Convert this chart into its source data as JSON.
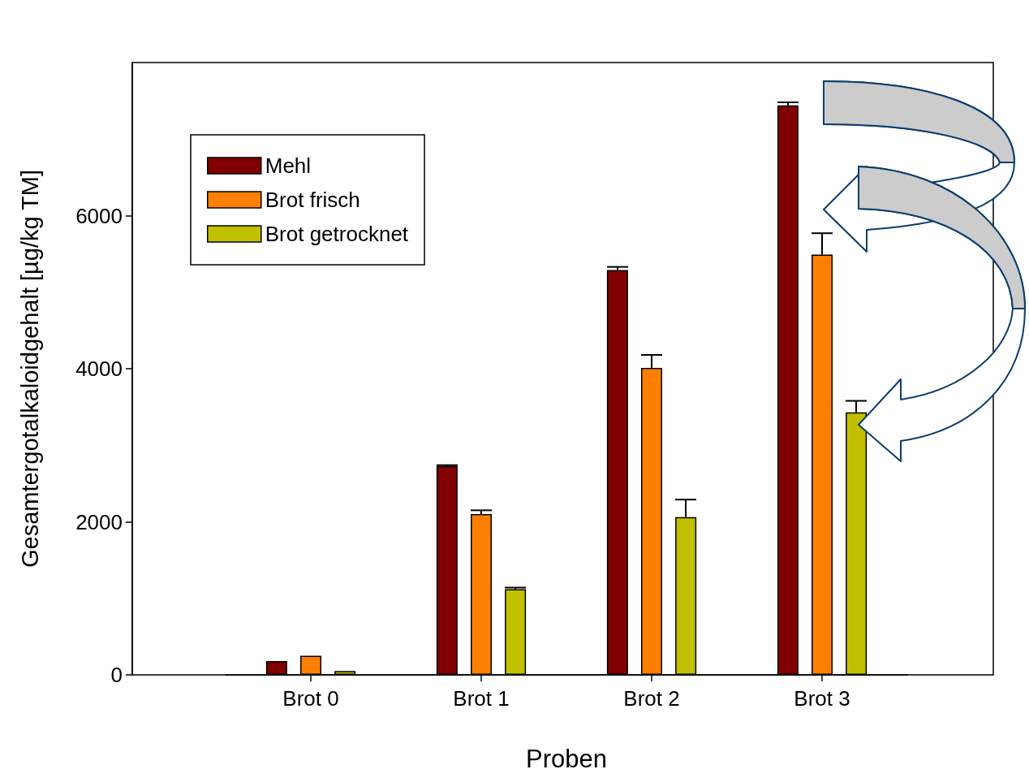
{
  "chart_data": {
    "type": "bar",
    "xlabel": "Proben",
    "ylabel": "Gesamtergotalkaloidgehalt [µg/kg TM]",
    "categories": [
      "Brot 0",
      "Brot 1",
      "Brot 2",
      "Brot 3"
    ],
    "series": [
      {
        "name": "Mehl",
        "color": "#800000",
        "values": [
          180,
          2730,
          5290,
          7440
        ],
        "errors": [
          null,
          [
            2730,
            2740
          ],
          [
            5290,
            5330
          ],
          [
            7440,
            7480
          ]
        ]
      },
      {
        "name": "Brot frisch",
        "color": "#ff8000",
        "values": [
          250,
          2100,
          4010,
          5490
        ],
        "errors": [
          null,
          [
            2100,
            2150
          ],
          [
            4010,
            4180
          ],
          [
            5490,
            5770
          ]
        ]
      },
      {
        "name": "Brot getrocknet",
        "color": "#c0c000",
        "values": [
          50,
          1120,
          2060,
          3430
        ],
        "errors": [
          null,
          [
            1120,
            1140
          ],
          [
            2060,
            2290
          ],
          [
            3430,
            3580
          ]
        ]
      }
    ],
    "ylim": [
      0,
      8000
    ],
    "yticks": [
      0,
      2000,
      4000,
      6000
    ],
    "grid": false,
    "legend": "top left"
  }
}
